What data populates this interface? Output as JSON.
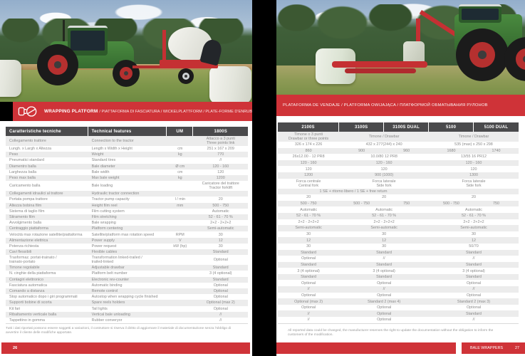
{
  "colors": {
    "accent_red": "#cf3338",
    "header_dark": "#4a4a4c",
    "row_alt": "#ececec"
  },
  "left_page": {
    "banner": {
      "title_bold": "WRAPPING PLATFORM",
      "title_rest": " / PIATTAFORMA DI FASCIATURA / WICKELPLATTFORM / PLATE-FORME D'ENRUBANNAGE"
    },
    "table": {
      "headers": [
        "Caratteristiche tecniche",
        "Technical features",
        "UM",
        "1800S"
      ],
      "rows": [
        {
          "it": "Collegamento trattore",
          "en": "Connection to the tractor",
          "um": "",
          "value": "Attacco a 3 punti\nThree points link"
        },
        {
          "it": "Lungh. x Largh x Altezza",
          "en": "Length x Width x Height",
          "um": "cm",
          "value": "251 x 167 x 209"
        },
        {
          "it": "Peso",
          "en": "Weight",
          "um": "kg",
          "value": "770"
        },
        {
          "it": "Pneumatici standard",
          "en": "Standard tires",
          "um": "",
          "value": "//"
        },
        {
          "it": "Diamentro balla",
          "en": "Bale diameter",
          "um": "Ø cm",
          "value": "120 - 160"
        },
        {
          "it": "Larghezza balla",
          "en": "Bale width",
          "um": "cm",
          "value": "120"
        },
        {
          "it": "Peso max balla",
          "en": "Max bale weight",
          "um": "kg",
          "value": "1200"
        },
        {
          "it": "Caricamento balla",
          "en": "Bale loading",
          "um": "",
          "value": "Caricatore del trattore\nTractor forklift"
        },
        {
          "it": "Collegamenti idraulici al trattore",
          "en": "Hydraulic tractor connection",
          "um": "",
          "value": ""
        },
        {
          "it": "Portata pompa trattore",
          "en": "Tractor pump capacity",
          "um": "l / min",
          "value": "20"
        },
        {
          "it": "Altezza bobina film",
          "en": "Height film reel",
          "um": "mm",
          "value": "500 - 750"
        },
        {
          "it": "Sistema di taglio film",
          "en": "Film cutting system",
          "um": "",
          "value": "Automatic"
        },
        {
          "it": "Stiramento film",
          "en": "Film stretching",
          "um": "",
          "value": "52 - 61 - 70 %"
        },
        {
          "it": "Avvolgimento balla",
          "en": "Bale wrapping",
          "um": "",
          "value": "2+2 - 2+2+2"
        },
        {
          "it": "Centraggio piattaforma",
          "en": "Platform centering",
          "um": "",
          "value": "Semi-automatic"
        },
        {
          "it": "Velocità max rotazione satellite/piattaforma",
          "en": "Satellite/platform max rotation speed",
          "um": "RPM",
          "value": "30"
        },
        {
          "it": "Alimentazione elettrica",
          "en": "Power supply",
          "um": "V",
          "value": "12"
        },
        {
          "it": "Potenza richiesta",
          "en": "Power request",
          "um": "kW (hp)",
          "value": "30"
        },
        {
          "it": "Cavi flessibili",
          "en": "Flexible cables",
          "um": "",
          "value": "Standard"
        },
        {
          "it": "Trasformaz. portat-trainato /\ntrainato-portato",
          "en": "Transformation linked-trailed /\ntrailed-linked",
          "um": "",
          "value": "Optional"
        },
        {
          "it": "Timone regolabile",
          "en": "Adjustable drawbar",
          "um": "",
          "value": "Standard"
        },
        {
          "it": "N. cinghie della piattaforma",
          "en": "Platform belt number",
          "um": "",
          "value": "3 (4 optional)"
        },
        {
          "it": "Contagiri elettronico",
          "en": "Electronic rev-counter",
          "um": "",
          "value": "Standard"
        },
        {
          "it": "Fasciatura automatica",
          "en": "Automatic binding",
          "um": "",
          "value": "Optional"
        },
        {
          "it": "Comando a distanza",
          "en": "Remote control",
          "um": "",
          "value": "Optional"
        },
        {
          "it": "Stop automatico dopo i giri programmati",
          "en": "Autostop when wrapping cycle finished",
          "um": "",
          "value": "Optional"
        },
        {
          "it": "Supporti bobine di scorta",
          "en": "Spare reels holders",
          "um": "",
          "value": "Optional (max 2)"
        },
        {
          "it": "Kit fari",
          "en": "Tail lights",
          "um": "",
          "value": "Optional"
        },
        {
          "it": "Ribaltamento verticale balla",
          "en": "Vertical bale unloading",
          "um": "",
          "value": "//"
        },
        {
          "it": "Tappettino in gomma",
          "en": "Rubber converyor",
          "um": "",
          "value": "//"
        }
      ]
    },
    "footnote": "Tutti i dati riportati possono essere soggetti a variazioni, il costruttore si riserva il diritto di aggiornare il materiale di documentazione senza l'obbligo di avvertire il cliente delle modifiche apportate.",
    "page_number": "26"
  },
  "right_page": {
    "banner": {
      "title": "PLATAFORMA DE VENDAJE / PLATFORMA OWIJAJĄCA / ПЛАТФОРМОЙ ОБМАТЫВАНИЯ РУЛОНОВ"
    },
    "table": {
      "headers": [
        "2100S",
        "3100S",
        "3100S DUAL",
        "5100",
        "5100 DUAL"
      ],
      "rows": [
        {
          "cells": [
            [
              "Timone o 3 punti\nDrawbar or three points",
              1
            ],
            [
              "Timone / Drawbar",
              2
            ],
            [
              "Timone / Drawbar",
              2
            ]
          ]
        },
        {
          "cells": [
            [
              "326 x 174 x 226",
              1
            ],
            [
              "432 x 277(244) x 240",
              2
            ],
            [
              "535 (max) x 250 x 298",
              2
            ]
          ]
        },
        {
          "cells": [
            [
              "860",
              1
            ],
            [
              "900",
              1
            ],
            [
              "960",
              1
            ],
            [
              "1680",
              1
            ],
            [
              "1740",
              1
            ]
          ]
        },
        {
          "cells": [
            [
              "26x12.00 - 12 PR8",
              1
            ],
            [
              "10.0/80 12 PR8",
              2
            ],
            [
              "13/55 16 PR12",
              2
            ]
          ]
        },
        {
          "cells": [
            [
              "120 - 160",
              1
            ],
            [
              "120 - 160",
              2
            ],
            [
              "120 - 160",
              2
            ]
          ]
        },
        {
          "cells": [
            [
              "120",
              1
            ],
            [
              "120",
              2
            ],
            [
              "120",
              2
            ]
          ]
        },
        {
          "cells": [
            [
              "1200",
              1
            ],
            [
              "900 (1000)",
              2
            ],
            [
              "1300",
              2
            ]
          ]
        },
        {
          "cells": [
            [
              "Forca centrale\nCentral fork",
              1
            ],
            [
              "Forca laterale\nSide fork",
              2
            ],
            [
              "Forca laterale\nSide fork",
              2
            ]
          ]
        },
        {
          "cells": [
            [
              "1 SE + ritorno libero / 1 SE + free return",
              3
            ],
            [
              "",
              2
            ]
          ]
        },
        {
          "cells": [
            [
              "20",
              1
            ],
            [
              "20",
              2
            ],
            [
              "20",
              2
            ]
          ]
        },
        {
          "cells": [
            [
              "500 - 750",
              1
            ],
            [
              "500 - 750",
              1
            ],
            [
              "750",
              1
            ],
            [
              "500 - 750",
              1
            ],
            [
              "750",
              1
            ]
          ]
        },
        {
          "cells": [
            [
              "Automatic",
              1
            ],
            [
              "Automatic",
              2
            ],
            [
              "Automatic",
              2
            ]
          ]
        },
        {
          "cells": [
            [
              "52 - 61 - 70 %",
              1
            ],
            [
              "52 - 61 - 70 %",
              2
            ],
            [
              "52 - 61 - 70 %",
              2
            ]
          ]
        },
        {
          "cells": [
            [
              "2+2 - 2+2+2",
              1
            ],
            [
              "2+2 - 2+2+2",
              2
            ],
            [
              "2+2 - 2+2+2",
              2
            ]
          ]
        },
        {
          "cells": [
            [
              "Semi-automatic",
              1
            ],
            [
              "Semi-automatic",
              2
            ],
            [
              "Semi-automatic",
              2
            ]
          ]
        },
        {
          "cells": [
            [
              "30",
              1
            ],
            [
              "30",
              2
            ],
            [
              "30",
              2
            ]
          ]
        },
        {
          "cells": [
            [
              "12",
              1
            ],
            [
              "12",
              2
            ],
            [
              "12",
              2
            ]
          ]
        },
        {
          "cells": [
            [
              "30",
              1
            ],
            [
              "30",
              2
            ],
            [
              "50/70",
              2
            ]
          ]
        },
        {
          "cells": [
            [
              "Standard",
              1
            ],
            [
              "Standard",
              2
            ],
            [
              "Standard",
              2
            ]
          ]
        },
        {
          "cells": [
            [
              "Optional",
              1
            ],
            [
              "//",
              2
            ],
            [
              "//",
              2
            ]
          ]
        },
        {
          "cells": [
            [
              "Standard",
              1
            ],
            [
              "Standard",
              2
            ],
            [
              "Standard",
              2
            ]
          ]
        },
        {
          "cells": [
            [
              "3 (4 optional)",
              1
            ],
            [
              "3 (4 optional)",
              2
            ],
            [
              "3 (4 optional)",
              2
            ]
          ]
        },
        {
          "cells": [
            [
              "Standard",
              1
            ],
            [
              "Standard",
              2
            ],
            [
              "Standard",
              2
            ]
          ]
        },
        {
          "cells": [
            [
              "Optional",
              1
            ],
            [
              "Optional",
              2
            ],
            [
              "Optional",
              2
            ]
          ]
        },
        {
          "cells": [
            [
              "//",
              1
            ],
            [
              "//",
              2
            ],
            [
              "//",
              2
            ]
          ]
        },
        {
          "cells": [
            [
              "Optional",
              1
            ],
            [
              "Optional",
              2
            ],
            [
              "Optional",
              2
            ]
          ]
        },
        {
          "cells": [
            [
              "Optional (max 2)",
              1
            ],
            [
              "Standard 2 (max 4)",
              2
            ],
            [
              "Standard 2 (max 3)",
              2
            ]
          ]
        },
        {
          "cells": [
            [
              "Optional",
              1
            ],
            [
              "Optional",
              2
            ],
            [
              "Optional",
              2
            ]
          ]
        },
        {
          "cells": [
            [
              "//",
              1
            ],
            [
              "Optional",
              2
            ],
            [
              "Standard",
              2
            ]
          ]
        },
        {
          "cells": [
            [
              "//",
              1
            ],
            [
              "Optional",
              2
            ],
            [
              "//",
              2
            ]
          ]
        }
      ]
    },
    "footnote": "All reported data could be changed, the manufacturer reserves the right to update the documentation without the obligation to inform the customers of the modification.",
    "footer_label": "BALE WRAPPERS",
    "page_number": "27"
  }
}
